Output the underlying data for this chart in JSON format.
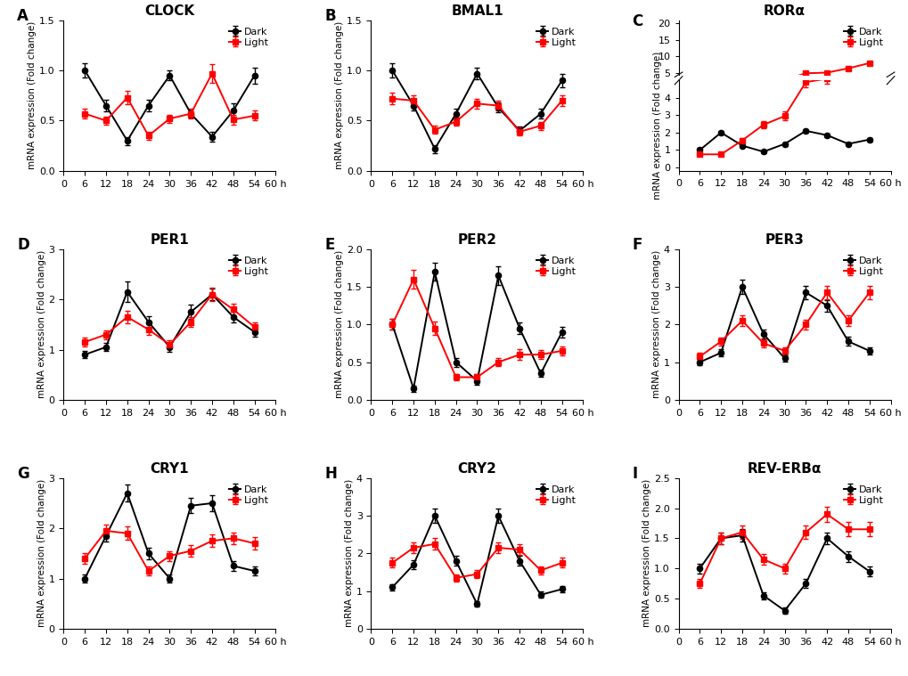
{
  "panels": [
    {
      "label": "A",
      "title": "CLOCK",
      "ylim": [
        0.0,
        1.5
      ],
      "yticks": [
        0.0,
        0.5,
        1.0,
        1.5
      ],
      "ytick_labels": [
        "0.0",
        "0.5",
        "1.0",
        "1.5"
      ],
      "dark_y": [
        1.0,
        0.65,
        0.3,
        0.65,
        0.95,
        0.57,
        0.34,
        0.6,
        0.95
      ],
      "dark_err": [
        0.07,
        0.06,
        0.04,
        0.06,
        0.05,
        0.04,
        0.05,
        0.07,
        0.08
      ],
      "light_y": [
        0.57,
        0.5,
        0.73,
        0.35,
        0.52,
        0.57,
        0.97,
        0.51,
        0.55
      ],
      "light_err": [
        0.05,
        0.04,
        0.07,
        0.04,
        0.04,
        0.05,
        0.09,
        0.05,
        0.05
      ]
    },
    {
      "label": "B",
      "title": "BMAL1",
      "ylim": [
        0.0,
        1.5
      ],
      "yticks": [
        0.0,
        0.5,
        1.0,
        1.5
      ],
      "ytick_labels": [
        "0.0",
        "0.5",
        "1.0",
        "1.5"
      ],
      "dark_y": [
        1.0,
        0.65,
        0.22,
        0.57,
        0.97,
        0.63,
        0.4,
        0.57,
        0.9
      ],
      "dark_err": [
        0.07,
        0.05,
        0.04,
        0.05,
        0.06,
        0.05,
        0.04,
        0.05,
        0.07
      ],
      "light_y": [
        0.72,
        0.7,
        0.41,
        0.49,
        0.67,
        0.65,
        0.39,
        0.45,
        0.7
      ],
      "light_err": [
        0.06,
        0.05,
        0.04,
        0.04,
        0.05,
        0.05,
        0.04,
        0.04,
        0.05
      ]
    },
    {
      "label": "C",
      "title": "RORα",
      "ylim": [
        0.0,
        20.0
      ],
      "yticks": [
        0,
        1,
        2,
        3,
        4,
        5,
        10,
        15,
        20
      ],
      "ytick_labels": [
        "0",
        "1",
        "2",
        "3",
        "4",
        "5",
        "10",
        "15",
        "20"
      ],
      "ytick_positions": [
        0,
        0.04,
        0.08,
        0.12,
        0.16,
        0.2,
        0.4,
        0.6,
        0.8
      ],
      "broken_axis": true,
      "dark_y": [
        1.0,
        2.0,
        1.25,
        0.9,
        1.35,
        2.1,
        1.85,
        1.35,
        1.6
      ],
      "dark_err": [
        0.08,
        0.12,
        0.1,
        0.08,
        0.1,
        0.12,
        0.1,
        0.09,
        0.1
      ],
      "light_y": [
        0.75,
        0.75,
        1.55,
        2.45,
        2.95,
        4.9,
        5.1,
        6.4,
        8.0
      ],
      "light_err": [
        0.07,
        0.06,
        0.15,
        0.2,
        0.25,
        0.3,
        0.3,
        0.35,
        0.4
      ]
    },
    {
      "label": "D",
      "title": "PER1",
      "ylim": [
        0.0,
        3.0
      ],
      "yticks": [
        0,
        1,
        2,
        3
      ],
      "ytick_labels": [
        "0",
        "1",
        "2",
        "3"
      ],
      "dark_y": [
        0.9,
        1.05,
        2.15,
        1.55,
        1.05,
        1.75,
        2.1,
        1.65,
        1.35
      ],
      "dark_err": [
        0.07,
        0.08,
        0.2,
        0.12,
        0.09,
        0.14,
        0.12,
        0.1,
        0.09
      ],
      "light_y": [
        1.15,
        1.3,
        1.65,
        1.4,
        1.1,
        1.55,
        2.1,
        1.8,
        1.45
      ],
      "light_err": [
        0.09,
        0.09,
        0.12,
        0.1,
        0.08,
        0.1,
        0.14,
        0.12,
        0.1
      ]
    },
    {
      "label": "E",
      "title": "PER2",
      "ylim": [
        0.0,
        2.0
      ],
      "yticks": [
        0.0,
        0.5,
        1.0,
        1.5,
        2.0
      ],
      "ytick_labels": [
        "0.0",
        "0.5",
        "1.0",
        "1.5",
        "2.0"
      ],
      "dark_y": [
        1.0,
        0.15,
        1.7,
        0.5,
        0.25,
        1.65,
        0.95,
        0.35,
        0.9
      ],
      "dark_err": [
        0.07,
        0.04,
        0.12,
        0.06,
        0.05,
        0.12,
        0.08,
        0.05,
        0.07
      ],
      "light_y": [
        1.0,
        1.6,
        0.95,
        0.3,
        0.3,
        0.5,
        0.6,
        0.6,
        0.65
      ],
      "light_err": [
        0.07,
        0.12,
        0.09,
        0.04,
        0.04,
        0.05,
        0.07,
        0.06,
        0.06
      ]
    },
    {
      "label": "F",
      "title": "PER3",
      "ylim": [
        0.0,
        4.0
      ],
      "yticks": [
        0,
        1,
        2,
        3,
        4
      ],
      "ytick_labels": [
        "0",
        "1",
        "2",
        "3",
        "4"
      ],
      "dark_y": [
        1.0,
        1.25,
        3.0,
        1.75,
        1.1,
        2.85,
        2.5,
        1.55,
        1.3
      ],
      "dark_err": [
        0.08,
        0.09,
        0.18,
        0.12,
        0.09,
        0.17,
        0.15,
        0.12,
        0.1
      ],
      "light_y": [
        1.15,
        1.55,
        2.1,
        1.5,
        1.3,
        2.0,
        2.85,
        2.1,
        2.85
      ],
      "light_err": [
        0.09,
        0.11,
        0.14,
        0.11,
        0.09,
        0.13,
        0.17,
        0.14,
        0.18
      ]
    },
    {
      "label": "G",
      "title": "CRY1",
      "ylim": [
        0.0,
        3.0
      ],
      "yticks": [
        0,
        1,
        2,
        3
      ],
      "ytick_labels": [
        "0",
        "1",
        "2",
        "3"
      ],
      "dark_y": [
        1.0,
        1.85,
        2.7,
        1.5,
        1.0,
        2.45,
        2.5,
        1.25,
        1.15
      ],
      "dark_err": [
        0.08,
        0.12,
        0.17,
        0.11,
        0.08,
        0.15,
        0.16,
        0.1,
        0.09
      ],
      "light_y": [
        1.4,
        1.95,
        1.9,
        1.15,
        1.45,
        1.55,
        1.75,
        1.8,
        1.7
      ],
      "light_err": [
        0.1,
        0.13,
        0.13,
        0.09,
        0.1,
        0.11,
        0.12,
        0.12,
        0.12
      ]
    },
    {
      "label": "H",
      "title": "CRY2",
      "ylim": [
        0.0,
        4.0
      ],
      "yticks": [
        0,
        1,
        2,
        3,
        4
      ],
      "ytick_labels": [
        "0",
        "1",
        "2",
        "3",
        "4"
      ],
      "dark_y": [
        1.1,
        1.7,
        3.0,
        1.8,
        0.65,
        3.0,
        1.8,
        0.9,
        1.05
      ],
      "dark_err": [
        0.09,
        0.12,
        0.18,
        0.13,
        0.07,
        0.18,
        0.13,
        0.08,
        0.09
      ],
      "light_y": [
        1.75,
        2.15,
        2.25,
        1.35,
        1.45,
        2.15,
        2.1,
        1.55,
        1.75
      ],
      "light_err": [
        0.13,
        0.14,
        0.15,
        0.1,
        0.1,
        0.14,
        0.14,
        0.11,
        0.13
      ]
    },
    {
      "label": "I",
      "title": "REV-ERBα",
      "ylim": [
        0.0,
        2.5
      ],
      "yticks": [
        0.0,
        0.5,
        1.0,
        1.5,
        2.0,
        2.5
      ],
      "ytick_labels": [
        "0.0",
        "0.5",
        "1.0",
        "1.5",
        "2.0",
        "2.5"
      ],
      "dark_y": [
        1.0,
        1.5,
        1.55,
        0.55,
        0.3,
        0.75,
        1.5,
        1.2,
        0.95
      ],
      "dark_err": [
        0.08,
        0.1,
        0.11,
        0.06,
        0.05,
        0.07,
        0.1,
        0.09,
        0.08
      ],
      "light_y": [
        0.75,
        1.5,
        1.6,
        1.15,
        1.0,
        1.6,
        1.9,
        1.65,
        1.65
      ],
      "light_err": [
        0.07,
        0.1,
        0.11,
        0.09,
        0.08,
        0.11,
        0.13,
        0.12,
        0.12
      ]
    }
  ],
  "x_values": [
    6,
    12,
    18,
    24,
    30,
    36,
    42,
    48,
    54
  ],
  "xlim": [
    0,
    60
  ],
  "xticks": [
    0,
    6,
    12,
    18,
    24,
    30,
    36,
    42,
    48,
    54,
    60
  ],
  "ylabel": "mRNA expression (Fold change)",
  "dark_color": "#000000",
  "light_color": "#ff0000",
  "dark_label": "Dark",
  "light_label": "Light",
  "marker_dark": "o",
  "marker_light": "s",
  "markersize": 4.5,
  "linewidth": 1.4,
  "capsize": 2.5,
  "elinewidth": 1.0,
  "label_fontsize": 12,
  "title_fontsize": 11,
  "tick_fontsize": 8,
  "legend_fontsize": 8,
  "ylabel_fontsize": 7.5
}
